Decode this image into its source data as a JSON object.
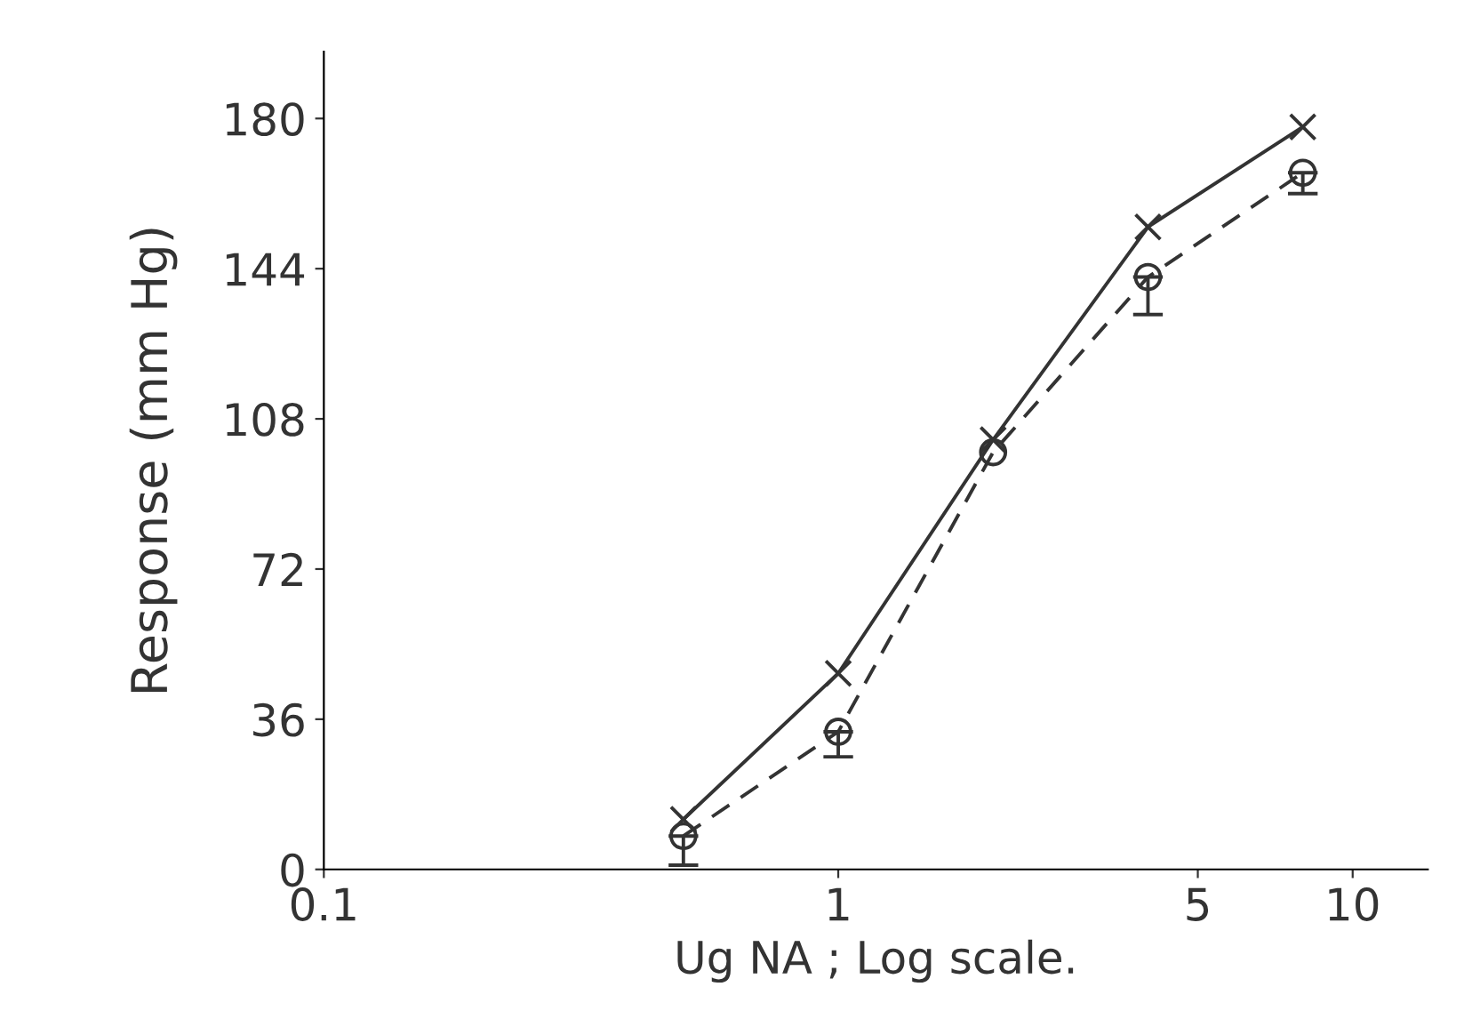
{
  "chart_data": {
    "type": "line",
    "xlabel": "Ug NA ; Log scale.",
    "ylabel": "Response (mm Hg)",
    "log": "x",
    "xlim": [
      0.1,
      14
    ],
    "xticks": [
      {
        "value": 0.1,
        "label": "0.1"
      },
      1,
      5,
      10
    ],
    "ylim": [
      0,
      196
    ],
    "yticks": [
      0,
      36,
      72,
      108,
      144,
      180
    ],
    "grid": false,
    "x": [
      0.5,
      1,
      2,
      4,
      8
    ],
    "series": [
      {
        "color": "#333333",
        "marker": "cross",
        "line_style": "solid",
        "values": [
          12,
          47,
          103,
          154,
          178
        ]
      },
      {
        "color": "#333333",
        "marker": "circle",
        "line_style": "dashed",
        "values": [
          8,
          33,
          100,
          142,
          167
        ],
        "errors": [
          [
            1,
            8
          ],
          [
            27,
            33
          ],
          null,
          [
            133,
            142
          ],
          [
            162,
            167
          ]
        ]
      }
    ]
  }
}
